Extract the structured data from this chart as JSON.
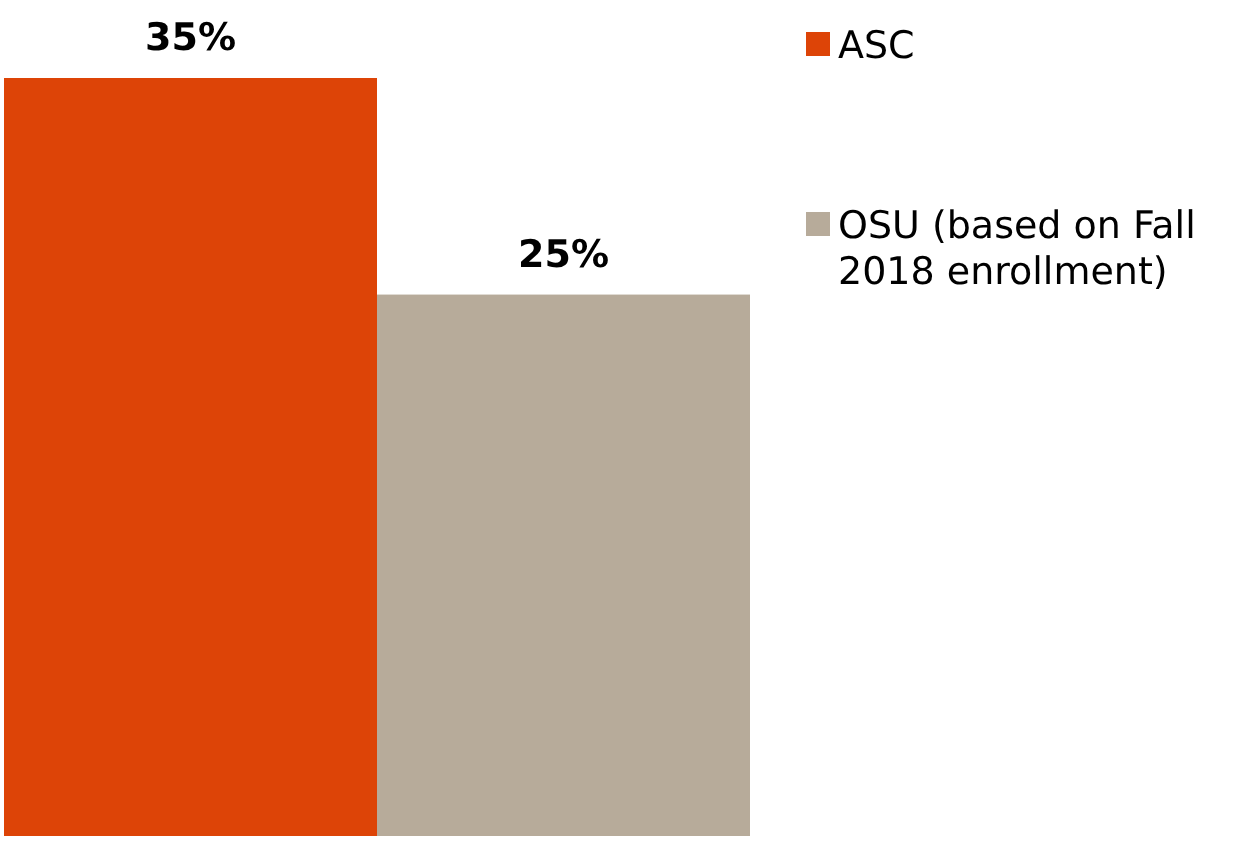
{
  "chart_data": {
    "type": "bar",
    "categories": [
      null
    ],
    "series": [
      {
        "name": "ASC",
        "color": "#dd4407",
        "values": [
          35
        ],
        "value_labels": [
          "35%"
        ]
      },
      {
        "name": "OSU (based on Fall 2018 enrollment)",
        "color": "#b7ab9a",
        "values": [
          25
        ],
        "value_labels": [
          "25%"
        ]
      }
    ],
    "legend": "right"
  }
}
